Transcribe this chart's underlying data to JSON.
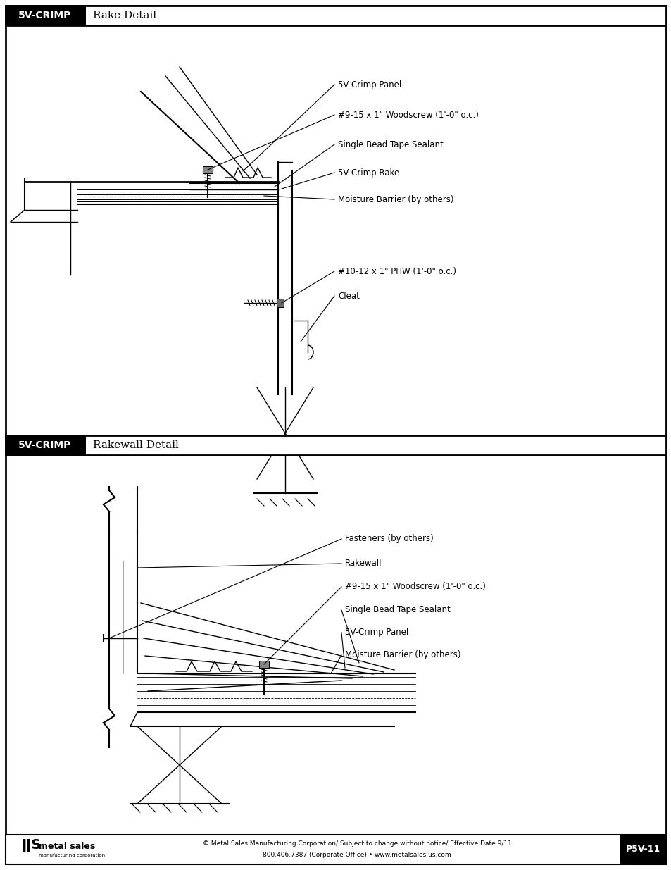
{
  "page_bg": "#ffffff",
  "header1_text": "5V-CRIMP",
  "header1_subtitle": "Rake Detail",
  "header2_text": "5V-CRIMP",
  "header2_subtitle": "Rakewall Detail",
  "footer_text1": "© Metal Sales Manufacturing Corporation/ Subject to change without notice/ Effective Date 9/11",
  "footer_text2": "800.406.7387 (Corporate Office) • www.metalsales.us.com",
  "footer_page": "P5V-11",
  "rake_labels": [
    "5V-Crimp Panel",
    "#9-15 x 1\" Woodscrew (1'-0\" o.c.)",
    "Single Bead Tape Sealant",
    "5V-Crimp Rake",
    "Moisture Barrier (by others)",
    "#10-12 x 1\" PHW (1'-0\" o.c.)",
    "Cleat"
  ],
  "rakewall_labels": [
    "Fasteners (by others)",
    "Rakewall",
    "#9-15 x 1\" Woodscrew (1'-0\" o.c.)",
    "Single Bead Tape Sealant",
    "5V-Crimp Panel",
    "Moisture Barrier (by others)"
  ]
}
